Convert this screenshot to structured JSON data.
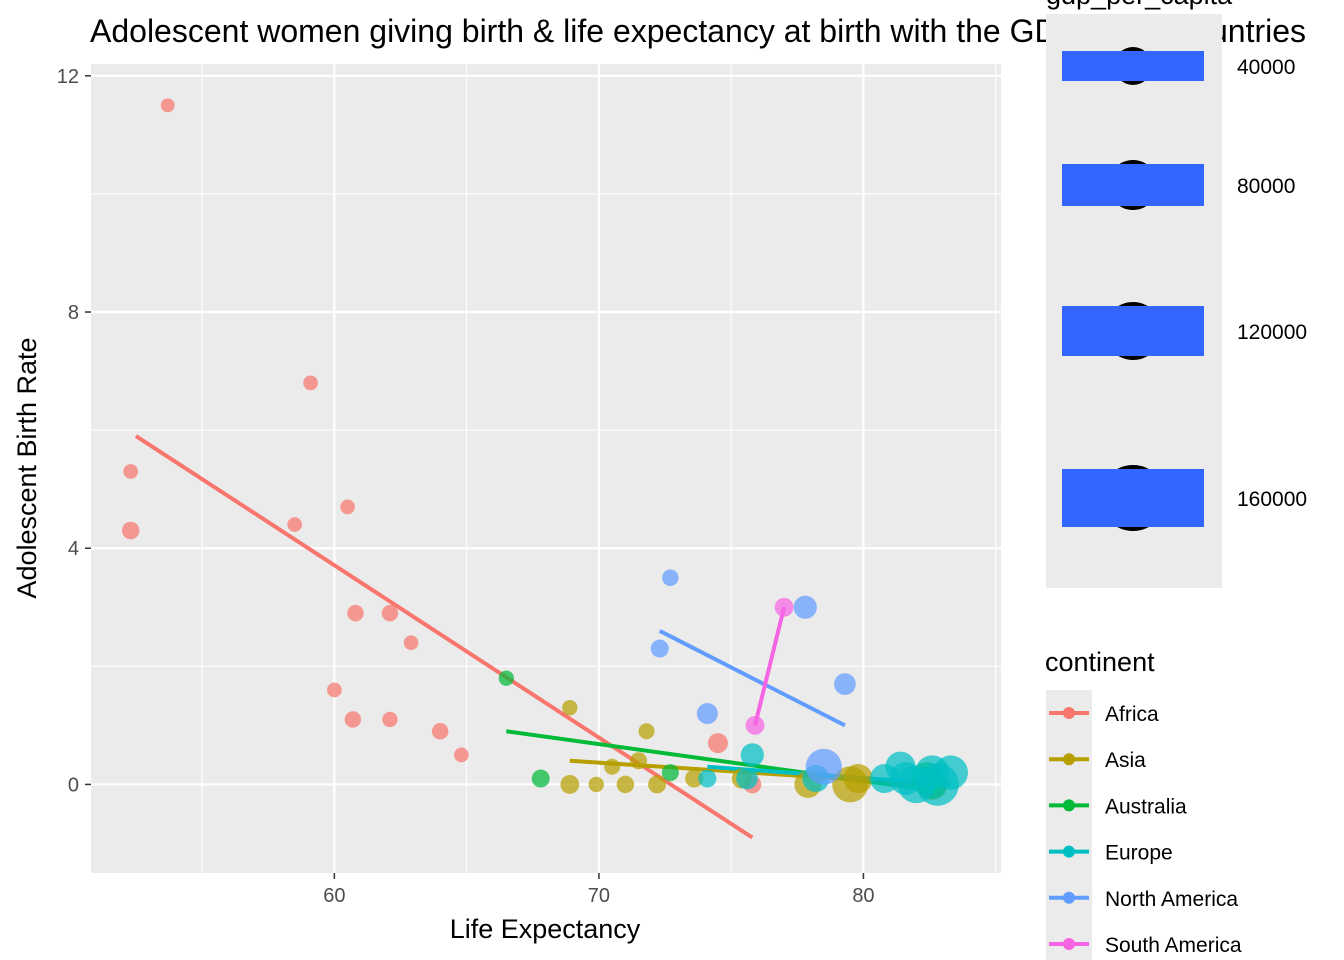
{
  "chart_data": {
    "type": "scatter",
    "title": "Adolescent women giving birth & life expectancy at birth with the GDP of the countries",
    "xlabel": "Life Expectancy",
    "ylabel": "Adolescent Birth Rate",
    "xlim": [
      50.8,
      85.2
    ],
    "ylim": [
      -1.5,
      12.2
    ],
    "x_ticks": [
      60,
      70,
      80
    ],
    "y_ticks": [
      0,
      4,
      8,
      12
    ],
    "grid": true,
    "size_legend": {
      "title": "gdp_per_capita",
      "entries": [
        {
          "label": "40000",
          "value": 40000
        },
        {
          "label": "80000",
          "value": 80000
        },
        {
          "label": "120000",
          "value": 120000
        },
        {
          "label": "160000",
          "value": 160000
        }
      ]
    },
    "color_legend": {
      "title": "continent",
      "placement": "right"
    },
    "series": [
      {
        "name": "Africa",
        "color": "#F8766D",
        "points": [
          {
            "x": 53.7,
            "y": 11.5,
            "gdp": 3000
          },
          {
            "x": 59.1,
            "y": 6.8,
            "gdp": 4000
          },
          {
            "x": 52.3,
            "y": 5.3,
            "gdp": 4000
          },
          {
            "x": 52.3,
            "y": 4.3,
            "gdp": 9000
          },
          {
            "x": 60.5,
            "y": 4.7,
            "gdp": 4000
          },
          {
            "x": 58.5,
            "y": 4.4,
            "gdp": 4000
          },
          {
            "x": 60.8,
            "y": 2.9,
            "gdp": 7000
          },
          {
            "x": 62.1,
            "y": 2.9,
            "gdp": 7000
          },
          {
            "x": 62.9,
            "y": 2.4,
            "gdp": 4000
          },
          {
            "x": 60.0,
            "y": 1.6,
            "gdp": 4000
          },
          {
            "x": 60.7,
            "y": 1.1,
            "gdp": 7000
          },
          {
            "x": 62.1,
            "y": 1.1,
            "gdp": 5000
          },
          {
            "x": 64.0,
            "y": 0.9,
            "gdp": 7000
          },
          {
            "x": 64.8,
            "y": 0.5,
            "gdp": 4000
          },
          {
            "x": 74.5,
            "y": 0.7,
            "gdp": 15000
          },
          {
            "x": 75.8,
            "y": 0.0,
            "gdp": 10000
          }
        ],
        "trend": {
          "x": [
            52.5,
            75.8
          ],
          "y": [
            5.9,
            -0.9
          ]
        }
      },
      {
        "name": "Asia",
        "color": "#B79F00",
        "points": [
          {
            "x": 68.9,
            "y": 1.3,
            "gdp": 5000
          },
          {
            "x": 71.8,
            "y": 0.9,
            "gdp": 6000
          },
          {
            "x": 71.5,
            "y": 0.4,
            "gdp": 8000
          },
          {
            "x": 70.5,
            "y": 0.3,
            "gdp": 6000
          },
          {
            "x": 69.9,
            "y": 0.0,
            "gdp": 5000
          },
          {
            "x": 68.9,
            "y": 0.0,
            "gdp": 12000
          },
          {
            "x": 71.0,
            "y": 0.0,
            "gdp": 9000
          },
          {
            "x": 72.2,
            "y": 0.0,
            "gdp": 10000
          },
          {
            "x": 73.6,
            "y": 0.1,
            "gdp": 10000
          },
          {
            "x": 75.4,
            "y": 0.1,
            "gdp": 15000
          },
          {
            "x": 77.9,
            "y": 0.0,
            "gdp": 40000
          },
          {
            "x": 79.5,
            "y": 0.0,
            "gdp": 90000
          },
          {
            "x": 79.8,
            "y": 0.1,
            "gdp": 50000
          },
          {
            "x": 82.6,
            "y": 0.0,
            "gdp": 60000
          }
        ],
        "trend": {
          "x": [
            68.9,
            82.6
          ],
          "y": [
            0.4,
            0.0
          ]
        }
      },
      {
        "name": "Australia",
        "color": "#00BA38",
        "points": [
          {
            "x": 66.5,
            "y": 1.8,
            "gdp": 5000
          },
          {
            "x": 67.8,
            "y": 0.1,
            "gdp": 10000
          },
          {
            "x": 72.7,
            "y": 0.2,
            "gdp": 8000
          },
          {
            "x": 82.4,
            "y": 0.1,
            "gdp": 70000
          },
          {
            "x": 82.6,
            "y": 0.0,
            "gdp": 50000
          }
        ],
        "trend": {
          "x": [
            66.5,
            82.6
          ],
          "y": [
            0.9,
            -0.1
          ]
        }
      },
      {
        "name": "Europe",
        "color": "#00BFC4",
        "points": [
          {
            "x": 74.1,
            "y": 0.1,
            "gdp": 10000
          },
          {
            "x": 75.8,
            "y": 0.5,
            "gdp": 25000
          },
          {
            "x": 75.6,
            "y": 0.1,
            "gdp": 20000
          },
          {
            "x": 78.2,
            "y": 0.1,
            "gdp": 40000
          },
          {
            "x": 80.8,
            "y": 0.1,
            "gdp": 50000
          },
          {
            "x": 81.4,
            "y": 0.3,
            "gdp": 55000
          },
          {
            "x": 81.6,
            "y": 0.1,
            "gdp": 70000
          },
          {
            "x": 82.0,
            "y": 0.0,
            "gdp": 100000
          },
          {
            "x": 82.6,
            "y": 0.2,
            "gdp": 80000
          },
          {
            "x": 82.8,
            "y": 0.0,
            "gdp": 140000
          },
          {
            "x": 83.3,
            "y": 0.2,
            "gdp": 80000
          }
        ],
        "trend": {
          "x": [
            74.1,
            83.3
          ],
          "y": [
            0.3,
            0.0
          ]
        }
      },
      {
        "name": "North America",
        "color": "#619CFF",
        "points": [
          {
            "x": 72.7,
            "y": 3.5,
            "gdp": 7000
          },
          {
            "x": 72.3,
            "y": 2.3,
            "gdp": 10000
          },
          {
            "x": 74.1,
            "y": 1.2,
            "gdp": 18000
          },
          {
            "x": 77.8,
            "y": 3.0,
            "gdp": 25000
          },
          {
            "x": 79.3,
            "y": 1.7,
            "gdp": 20000
          },
          {
            "x": 78.5,
            "y": 0.3,
            "gdp": 90000
          }
        ],
        "trend": {
          "x": [
            72.3,
            79.3
          ],
          "y": [
            2.6,
            1.0
          ]
        }
      },
      {
        "name": "South America",
        "color": "#F564E3",
        "points": [
          {
            "x": 77.0,
            "y": 3.0,
            "gdp": 12000
          },
          {
            "x": 75.9,
            "y": 1.0,
            "gdp": 12000
          }
        ],
        "trend": {
          "x": [
            75.9,
            77.0
          ],
          "y": [
            1.0,
            3.0
          ]
        }
      }
    ]
  }
}
